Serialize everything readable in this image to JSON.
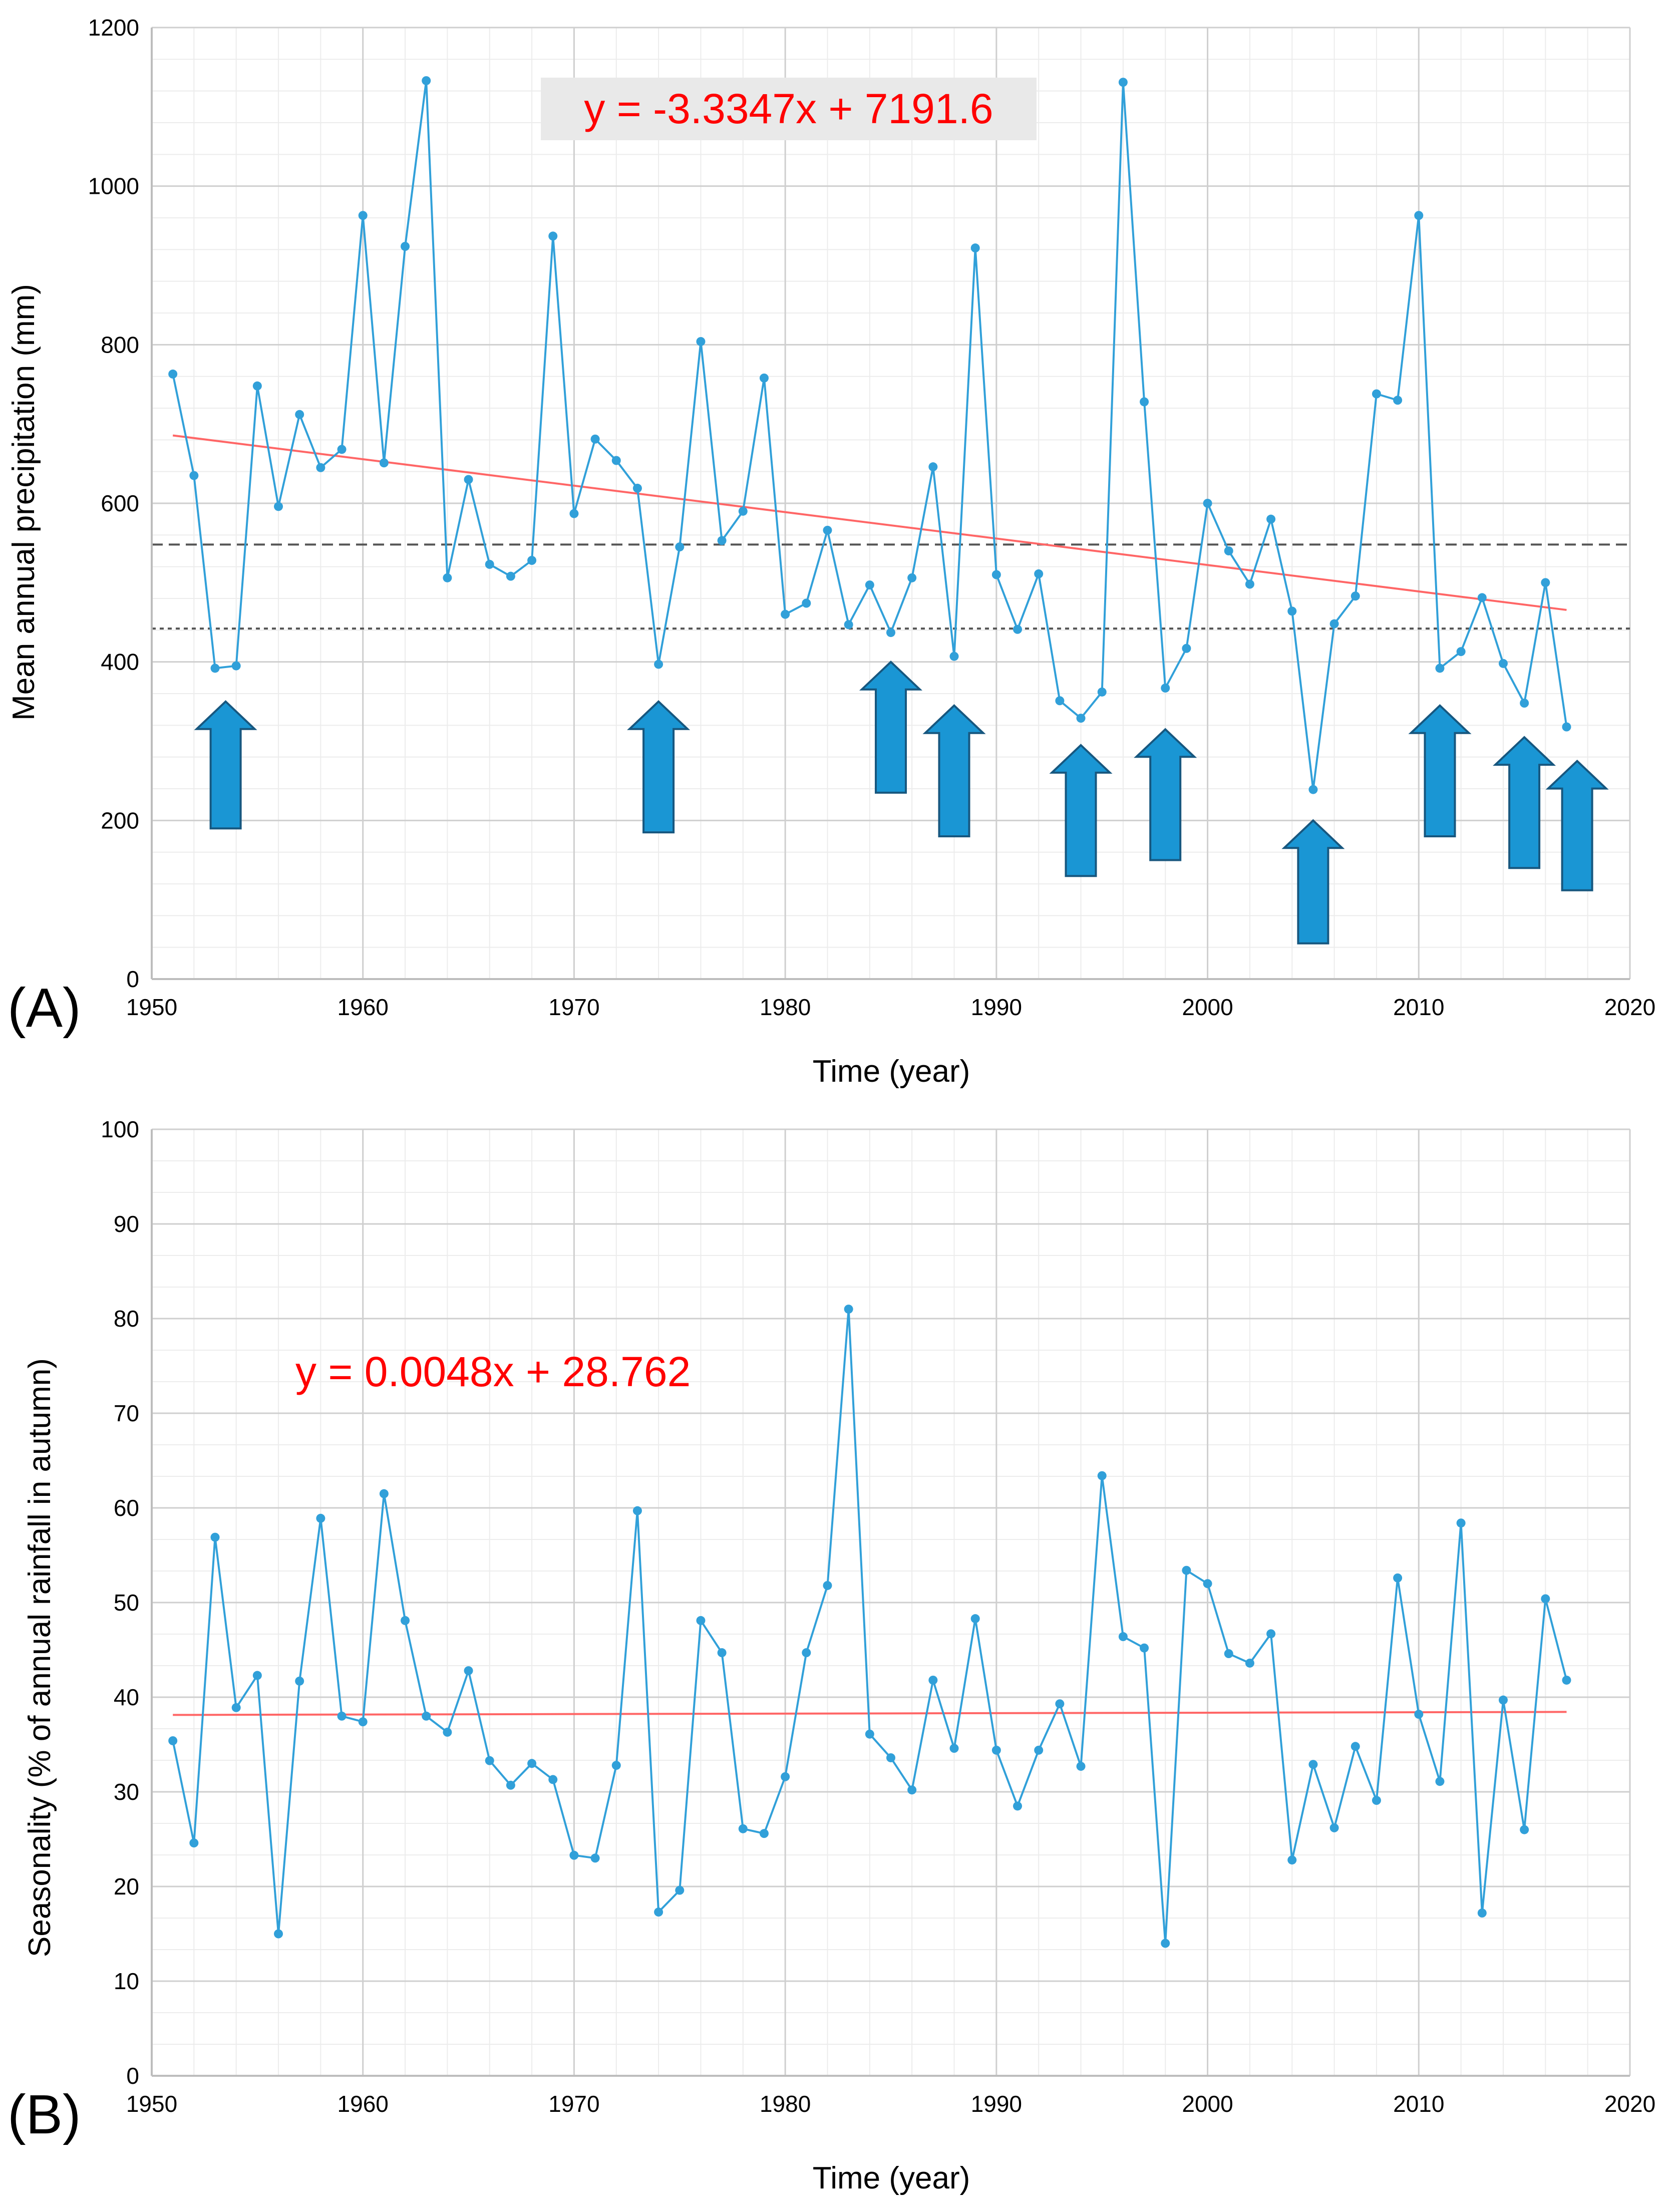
{
  "chart_data": [
    {
      "type": "line",
      "panel_label": "(A)",
      "title": "",
      "xlabel": "Time (year)",
      "ylabel": "Mean annual precipitation (mm)",
      "xlim": [
        1950,
        2020
      ],
      "ylim": [
        0,
        1200
      ],
      "xticks": [
        1950,
        1960,
        1970,
        1980,
        1990,
        2000,
        2010,
        2020
      ],
      "yticks": [
        0,
        200,
        400,
        600,
        800,
        1000,
        1200
      ],
      "grid": true,
      "trendline": {
        "equation": "y = -3.3347x + 7191.6",
        "slope": -3.3347,
        "intercept": 7191.6,
        "x_range": [
          1951,
          2017
        ]
      },
      "reference_lines": [
        {
          "y": 548,
          "style": "dashed"
        },
        {
          "y": 442,
          "style": "dotted"
        }
      ],
      "drought_arrows": [
        {
          "x": 1953.5,
          "tip": 350,
          "base": 190
        },
        {
          "x": 1974,
          "tip": 350,
          "base": 185
        },
        {
          "x": 1985,
          "tip": 400,
          "base": 235
        },
        {
          "x": 1988,
          "tip": 345,
          "base": 180
        },
        {
          "x": 1994,
          "tip": 295,
          "base": 130
        },
        {
          "x": 1998,
          "tip": 315,
          "base": 150
        },
        {
          "x": 2005,
          "tip": 200,
          "base": 45
        },
        {
          "x": 2011,
          "tip": 345,
          "base": 180
        },
        {
          "x": 2015,
          "tip": 305,
          "base": 140
        },
        {
          "x": 2017.5,
          "tip": 275,
          "base": 112
        }
      ],
      "series": [
        {
          "name": "Mean annual precipitation",
          "color": "#31a0d9",
          "x": [
            1951,
            1952,
            1953,
            1954,
            1955,
            1956,
            1957,
            1958,
            1959,
            1960,
            1961,
            1962,
            1963,
            1964,
            1965,
            1966,
            1967,
            1968,
            1969,
            1970,
            1971,
            1972,
            1973,
            1974,
            1975,
            1976,
            1977,
            1978,
            1979,
            1980,
            1981,
            1982,
            1983,
            1984,
            1985,
            1986,
            1987,
            1988,
            1989,
            1990,
            1991,
            1992,
            1993,
            1994,
            1995,
            1996,
            1997,
            1998,
            1999,
            2000,
            2001,
            2002,
            2003,
            2004,
            2005,
            2006,
            2007,
            2008,
            2009,
            2010,
            2011,
            2012,
            2013,
            2014,
            2015,
            2016,
            2017
          ],
          "values": [
            763,
            635,
            392,
            395,
            748,
            596,
            712,
            645,
            668,
            963,
            651,
            924,
            1133,
            506,
            630,
            523,
            508,
            528,
            937,
            587,
            681,
            654,
            619,
            397,
            545,
            804,
            553,
            590,
            758,
            460,
            474,
            566,
            447,
            497,
            437,
            506,
            646,
            407,
            922,
            510,
            441,
            511,
            351,
            329,
            362,
            1131,
            728,
            367,
            417,
            600,
            540,
            498,
            580,
            464,
            239,
            448,
            483,
            738,
            730,
            963,
            392,
            413,
            481,
            398,
            348,
            500,
            318
          ]
        }
      ],
      "trendline_color": "#ff6666"
    },
    {
      "type": "line",
      "panel_label": "(B)",
      "title": "",
      "xlabel": "Time (year)",
      "ylabel": "Seasonality (% of annual rainfall in autumn)",
      "xlim": [
        1950,
        2020
      ],
      "ylim": [
        0,
        100
      ],
      "xticks": [
        1950,
        1960,
        1970,
        1980,
        1990,
        2000,
        2010,
        2020
      ],
      "yticks": [
        0,
        10,
        20,
        30,
        40,
        50,
        60,
        70,
        80,
        90,
        100
      ],
      "grid": true,
      "trendline": {
        "equation": "y = 0.0048x + 28.762",
        "slope": 0.0048,
        "intercept": 28.762,
        "x_range": [
          1951,
          2017
        ]
      },
      "series": [
        {
          "name": "Seasonality",
          "color": "#31a0d9",
          "x": [
            1951,
            1952,
            1953,
            1954,
            1955,
            1956,
            1957,
            1958,
            1959,
            1960,
            1961,
            1962,
            1963,
            1964,
            1965,
            1966,
            1967,
            1968,
            1969,
            1970,
            1971,
            1972,
            1973,
            1974,
            1975,
            1976,
            1977,
            1978,
            1979,
            1980,
            1981,
            1982,
            1983,
            1984,
            1985,
            1986,
            1987,
            1988,
            1989,
            1990,
            1991,
            1992,
            1993,
            1994,
            1995,
            1996,
            1997,
            1998,
            1999,
            2000,
            2001,
            2002,
            2003,
            2004,
            2005,
            2006,
            2007,
            2008,
            2009,
            2010,
            2011,
            2012,
            2013,
            2014,
            2015,
            2016,
            2017
          ],
          "values": [
            35.4,
            24.6,
            56.9,
            38.9,
            42.3,
            15.0,
            41.7,
            58.9,
            38.0,
            37.4,
            61.5,
            48.1,
            38.0,
            36.3,
            42.8,
            33.3,
            30.7,
            33.0,
            31.3,
            23.3,
            23.0,
            32.8,
            59.7,
            17.3,
            19.6,
            48.1,
            44.7,
            26.1,
            25.6,
            31.6,
            44.7,
            51.8,
            81.0,
            36.1,
            33.6,
            30.2,
            41.8,
            34.6,
            48.3,
            34.4,
            28.5,
            34.4,
            39.3,
            32.7,
            63.4,
            46.4,
            45.2,
            14.0,
            53.4,
            52.0,
            44.6,
            43.6,
            46.7,
            22.8,
            32.9,
            26.2,
            34.8,
            29.1,
            52.6,
            38.2,
            31.1,
            58.4,
            17.2,
            39.7,
            26.0,
            50.4,
            41.8
          ]
        }
      ],
      "trendline_color": "#ff6666"
    }
  ]
}
